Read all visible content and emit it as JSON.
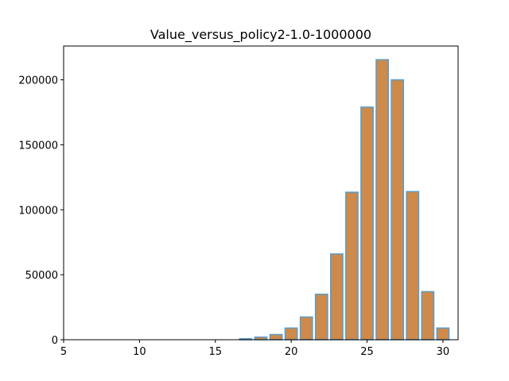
{
  "chart_data": {
    "type": "bar",
    "title": "Value_versus_policy2-1.0-1000000",
    "xlabel": "",
    "ylabel": "",
    "x": [
      6,
      7,
      8,
      9,
      10,
      11,
      12,
      13,
      14,
      15,
      16,
      17,
      18,
      19,
      20,
      21,
      22,
      23,
      24,
      25,
      26,
      27,
      28,
      29,
      30
    ],
    "values": [
      0,
      0,
      0,
      0,
      0,
      0,
      0,
      0,
      0,
      0,
      0,
      800,
      2000,
      4000,
      9000,
      17500,
      35000,
      66000,
      113500,
      179000,
      215500,
      200000,
      114000,
      37000,
      9000
    ],
    "xlim": [
      5,
      31
    ],
    "ylim": [
      0,
      226000
    ],
    "xticks": [
      5,
      10,
      15,
      20,
      25,
      30
    ],
    "yticks": [
      0,
      50000,
      100000,
      150000,
      200000
    ],
    "bar_width": 0.8,
    "colors": {
      "fill": "#cd8a4b",
      "edge": "#5b9bc9"
    },
    "grid": false,
    "legend": false
  }
}
